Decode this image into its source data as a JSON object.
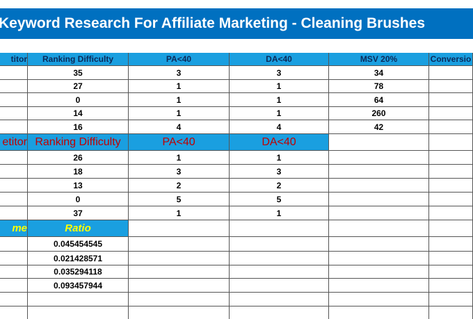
{
  "title": "Keyword Research For Affiliate Marketing - Cleaning Brushes",
  "table1": {
    "header": [
      "titor",
      "Ranking Difficulty",
      "PA<40",
      "DA<40",
      "MSV 20%",
      "Conversio"
    ],
    "rows": [
      [
        35,
        3,
        3,
        34
      ],
      [
        27,
        1,
        1,
        78
      ],
      [
        0,
        1,
        1,
        64
      ],
      [
        14,
        1,
        1,
        260
      ],
      [
        16,
        4,
        4,
        42
      ]
    ]
  },
  "table2": {
    "header": [
      "etitor",
      "Ranking Difficulty",
      "PA<40",
      "DA<40"
    ],
    "rows": [
      [
        26,
        1,
        1
      ],
      [
        18,
        3,
        3
      ],
      [
        13,
        2,
        2
      ],
      [
        0,
        5,
        5
      ],
      [
        37,
        1,
        1
      ]
    ]
  },
  "table3": {
    "header": [
      "me",
      "Ratio"
    ],
    "rows": [
      0.045454545,
      0.021428571,
      0.035294118,
      0.093457944
    ]
  }
}
